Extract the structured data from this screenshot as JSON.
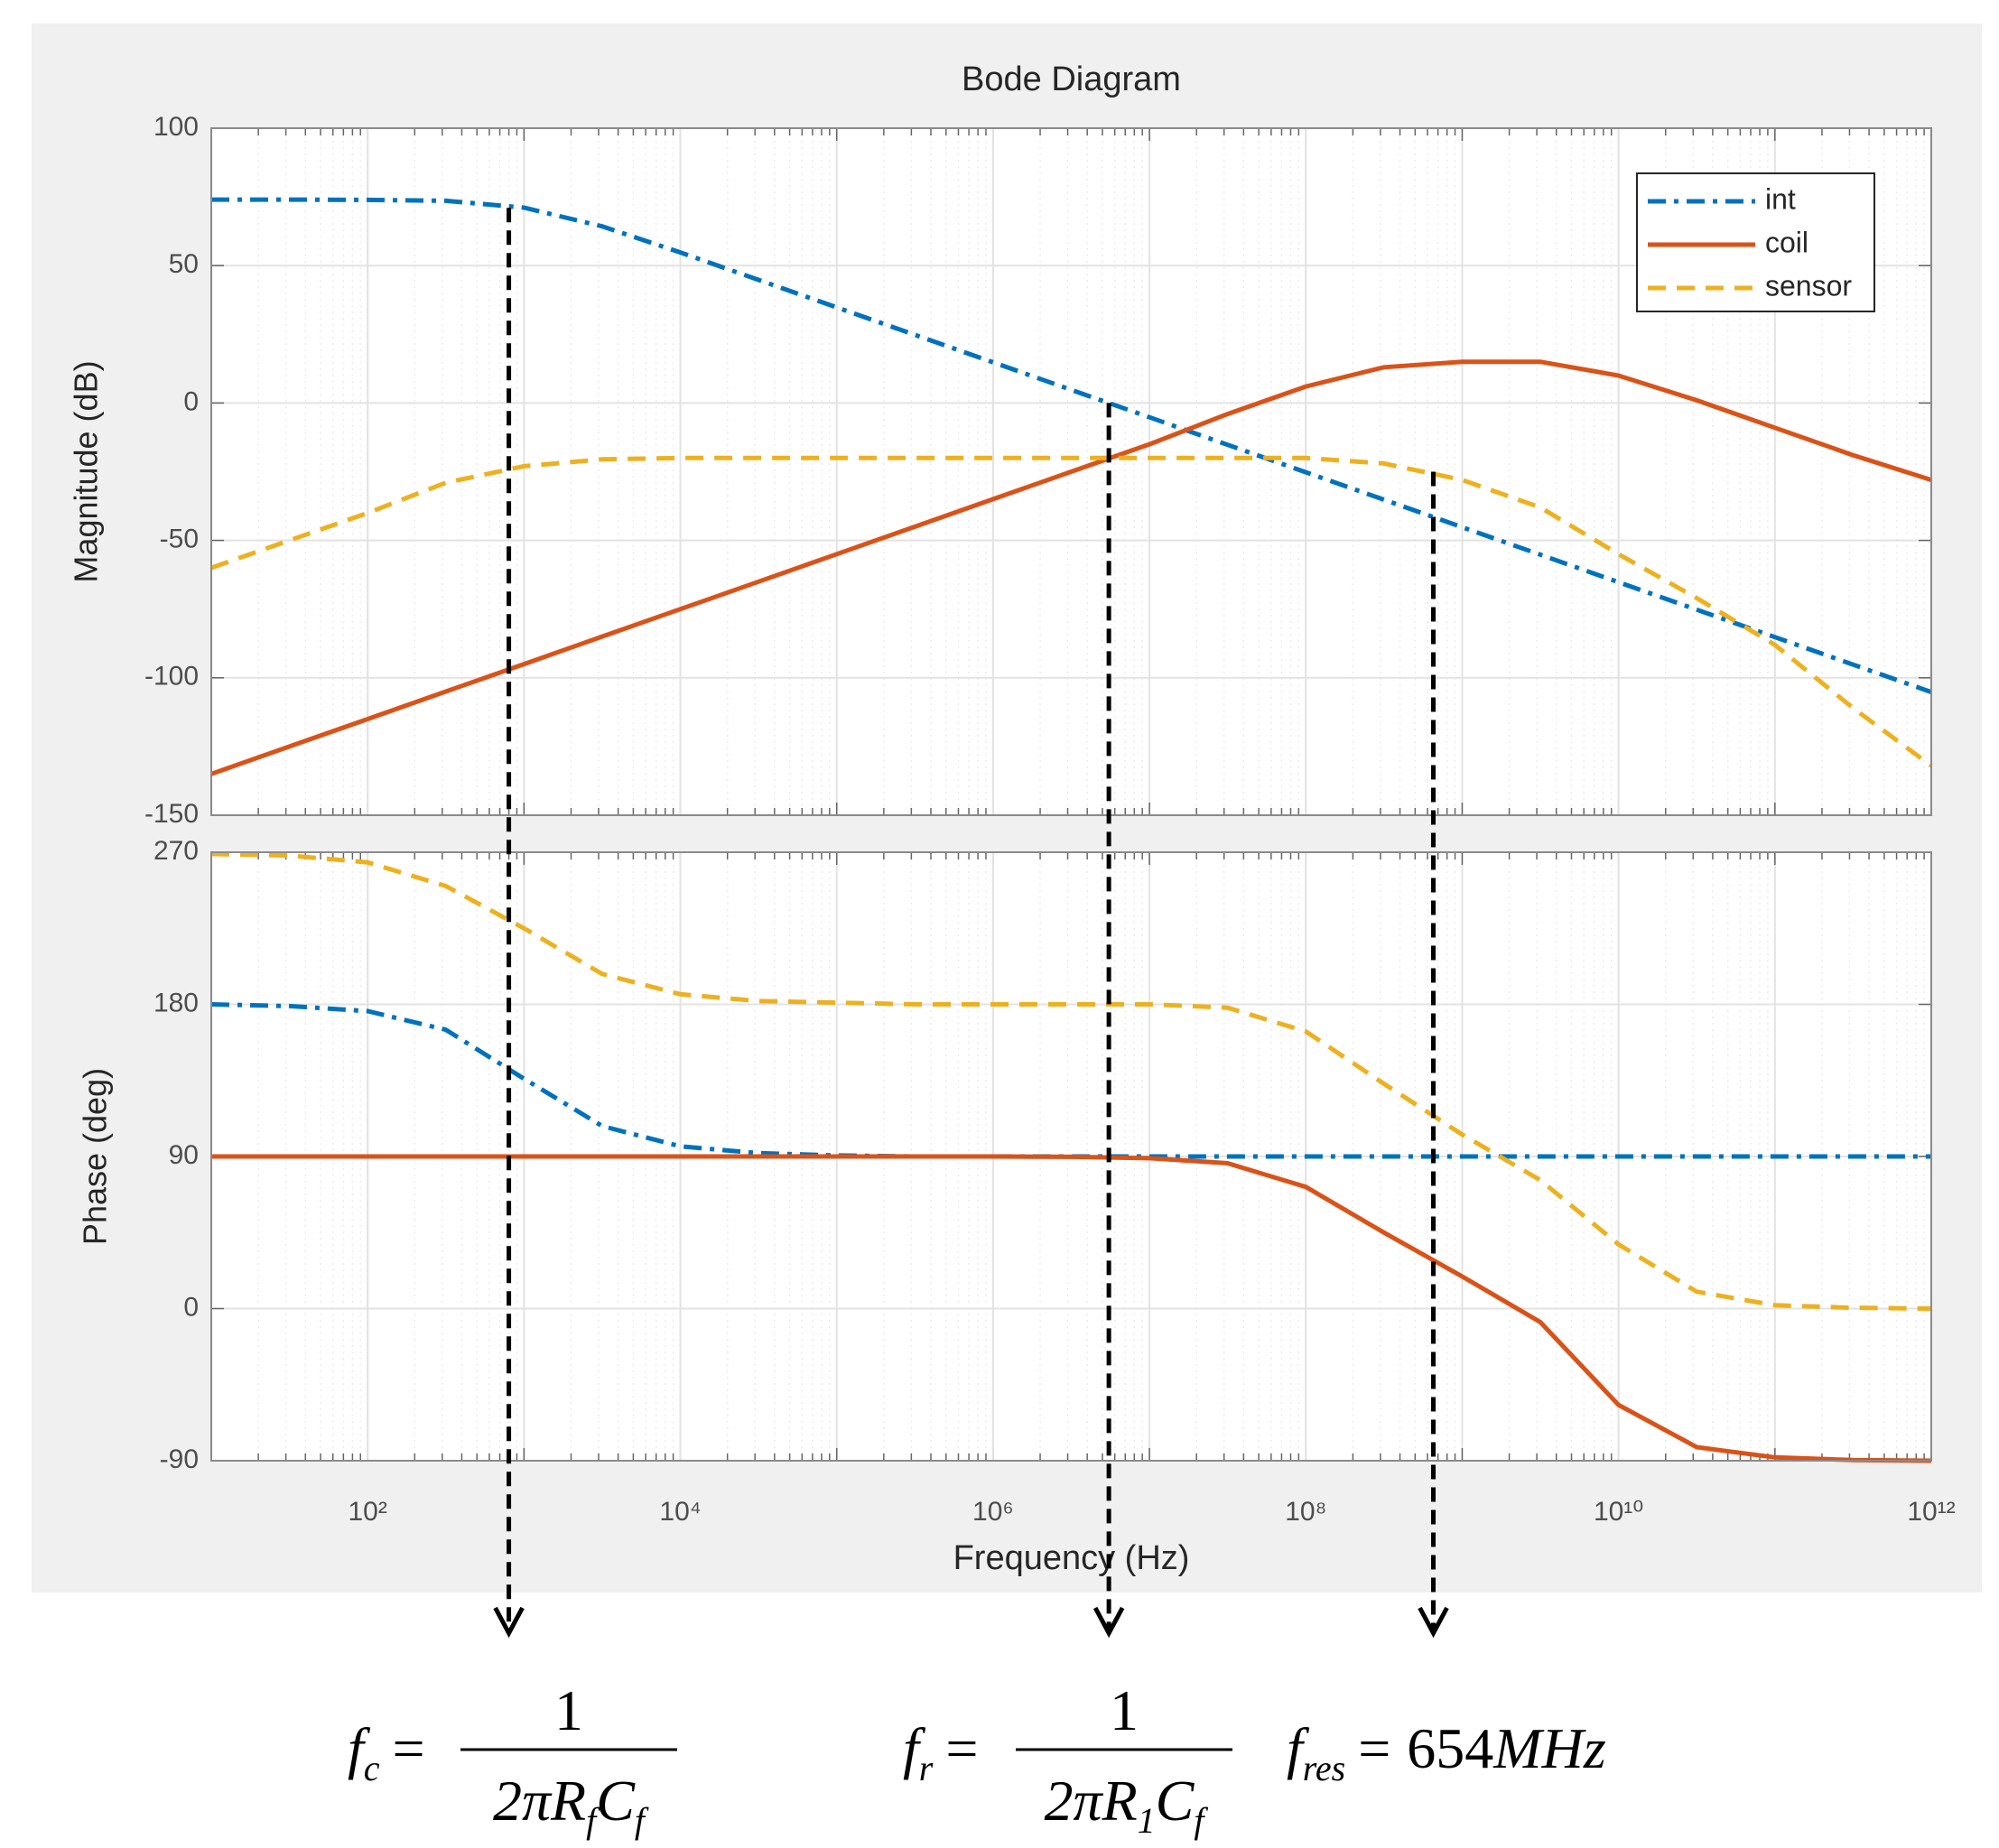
{
  "chart_data": [
    {
      "type": "line",
      "title": "Bode Diagram",
      "ylabel": "Magnitude (dB)",
      "x": [
        10,
        31.6,
        100,
        316,
        1000,
        3160,
        10000,
        31600,
        100000,
        316000,
        1000000,
        3160000,
        10000000,
        31600000,
        100000000,
        316000000,
        1000000000,
        3160000000,
        10000000000,
        31600000000,
        100000000000,
        316000000000,
        1000000000000
      ],
      "xlim": [
        10,
        1000000000000
      ],
      "xscale": "log",
      "ylim": [
        -150,
        100
      ],
      "yticks": [
        -150,
        -100,
        -50,
        0,
        50,
        100
      ],
      "grid": true,
      "legend": "upper right",
      "series": [
        {
          "name": "int",
          "color": "#0072bd",
          "style": "dashdot",
          "values": [
            74,
            74,
            73.9,
            73.6,
            71.1,
            64.3,
            54.8,
            44.8,
            34.8,
            24.8,
            14.8,
            4.8,
            -5.2,
            -15.2,
            -25.2,
            -35.2,
            -45.2,
            -55.2,
            -65.2,
            -75.2,
            -85.2,
            -95.2,
            -105.2
          ]
        },
        {
          "name": "coil",
          "color": "#d95319",
          "style": "solid",
          "values": [
            -135,
            -125,
            -115,
            -105,
            -95,
            -85,
            -75,
            -65,
            -55,
            -45,
            -35,
            -25,
            -15,
            -4,
            6,
            13,
            15,
            15,
            10,
            1,
            -9,
            -19,
            -28
          ]
        },
        {
          "name": "sensor",
          "color": "#edb120",
          "style": "dashed",
          "values": [
            -60,
            -50,
            -40,
            -29,
            -23,
            -20.5,
            -20,
            -20,
            -20,
            -20,
            -20,
            -20,
            -20,
            -20,
            -20,
            -22,
            -28,
            -38,
            -55,
            -71,
            -88,
            -111,
            -132
          ]
        }
      ]
    },
    {
      "type": "line",
      "ylabel": "Phase (deg)",
      "xlabel": "Frequency (Hz)",
      "x": [
        10,
        31.6,
        100,
        316,
        1000,
        3160,
        10000,
        31600,
        100000,
        316000,
        1000000,
        3160000,
        10000000,
        31600000,
        100000000,
        316000000,
        1000000000,
        3160000000,
        10000000000,
        31600000000,
        100000000000,
        316000000000,
        1000000000000
      ],
      "xlim": [
        10,
        1000000000000
      ],
      "xscale": "log",
      "xticks": [
        {
          "value": 100,
          "label": "10²"
        },
        {
          "value": 10000,
          "label": "10⁴"
        },
        {
          "value": 1000000,
          "label": "10⁶"
        },
        {
          "value": 100000000,
          "label": "10⁸"
        },
        {
          "value": 10000000000,
          "label": "10¹⁰"
        },
        {
          "value": 1000000000000,
          "label": "10¹²"
        }
      ],
      "ylim": [
        -90,
        270
      ],
      "yticks": [
        -90,
        0,
        90,
        180,
        270
      ],
      "grid": true,
      "series": [
        {
          "color": "#0072bd",
          "style": "dashdot",
          "values": [
            180,
            179,
            176,
            165,
            136,
            108,
            96,
            92,
            90.6,
            90,
            90,
            90,
            90,
            90,
            90,
            90,
            90,
            90,
            90,
            90,
            90,
            90,
            90
          ]
        },
        {
          "color": "#d95319",
          "style": "solid",
          "values": [
            90,
            90,
            90,
            90,
            90,
            90,
            90,
            90,
            90,
            90,
            90,
            89.8,
            89,
            86,
            72,
            45,
            19,
            -8,
            -57,
            -82,
            -88,
            -89.6,
            -90
          ]
        },
        {
          "color": "#edb120",
          "style": "dashed",
          "values": [
            269,
            268,
            264,
            250,
            225,
            198,
            186,
            182,
            181,
            180,
            180,
            180,
            180,
            178,
            164,
            133,
            103,
            76,
            38,
            10,
            2,
            0.5,
            0
          ]
        }
      ]
    }
  ],
  "annotations": [
    {
      "x": 800,
      "y": 71,
      "symbol": "f",
      "sub": "c",
      "numerator": "1",
      "denominator": [
        {
          "text": "2πR",
          "sub": "f"
        },
        {
          "text": "C",
          "sub": "f"
        }
      ]
    },
    {
      "x": 5500000,
      "y": 0,
      "symbol": "f",
      "sub": "r",
      "numerator": "1",
      "denominator": [
        {
          "text": "2πR",
          "sub": "1"
        },
        {
          "text": "C",
          "sub": "f"
        }
      ]
    },
    {
      "x": 654000000,
      "y": -25,
      "symbol": "f",
      "sub": "res",
      "rhs": "654",
      "unit": "MHz"
    }
  ]
}
